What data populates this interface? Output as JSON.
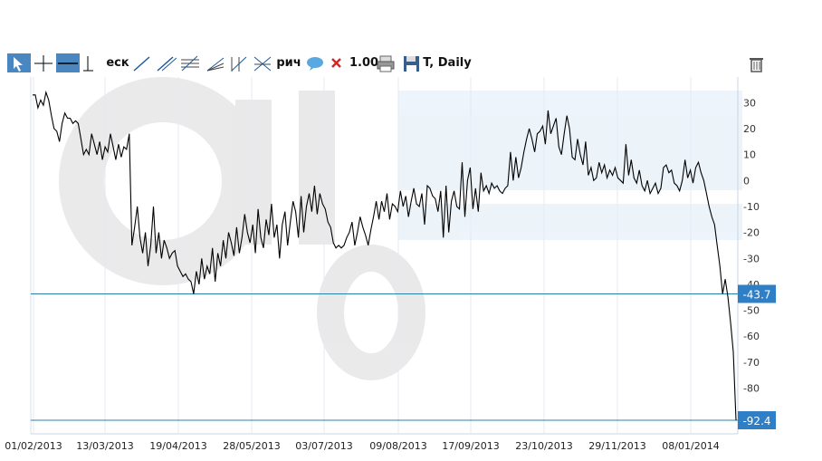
{
  "toolbar": {
    "items": [
      {
        "id": "cursor",
        "icon": "cursor-arrow-icon",
        "label": ""
      },
      {
        "id": "crosshair",
        "icon": "crosshair-icon",
        "label": ""
      },
      {
        "id": "hline",
        "icon": "horizontal-line-icon",
        "label": ""
      },
      {
        "id": "vline",
        "icon": "vertical-line-icon",
        "label": ""
      },
      {
        "id": "text1",
        "icon": "",
        "label": "еск"
      },
      {
        "id": "trend",
        "icon": "trend-line-icon",
        "label": ""
      },
      {
        "id": "ray",
        "icon": "ray-line-icon",
        "label": ""
      },
      {
        "id": "channel",
        "icon": "channel-icon",
        "label": ""
      },
      {
        "id": "fan",
        "icon": "fan-icon",
        "label": ""
      },
      {
        "id": "pitchfork",
        "icon": "pitchfork-icon",
        "label": ""
      },
      {
        "id": "gann",
        "icon": "gann-icon",
        "label": ""
      },
      {
        "id": "text2",
        "icon": "",
        "label": "рич"
      },
      {
        "id": "comment",
        "icon": "speech-bubble-icon",
        "label": ""
      },
      {
        "id": "delete",
        "icon": "x-mark-icon",
        "label": "1.00"
      },
      {
        "id": "print",
        "icon": "printer-icon",
        "label": ""
      },
      {
        "id": "save",
        "icon": "floppy-disk-icon",
        "label": "T, Daily"
      }
    ],
    "trash_icon": "trash-icon"
  },
  "chart_data": {
    "type": "line",
    "title": "",
    "xlabel": "",
    "ylabel": "",
    "ylim": [
      -92.4,
      36
    ],
    "y_ticks": [
      30,
      20,
      10,
      0,
      -10,
      -20,
      -30,
      -40,
      -50,
      -60,
      -70,
      -80
    ],
    "y_tick_labels": [
      "30",
      "20",
      "10",
      "0",
      "-10",
      "-20",
      "-30",
      "-40",
      "-50",
      "-60",
      "-70",
      "-80"
    ],
    "x_tick_labels": [
      "01/02/2013",
      "13/03/2013",
      "19/04/2013",
      "28/05/2013",
      "03/07/2013",
      "09/08/2013",
      "17/09/2013",
      "23/10/2013",
      "29/11/2013",
      "08/01/2014"
    ],
    "grid": true,
    "horizontal_lines": [
      {
        "value": -43.7,
        "label": "-43.7"
      },
      {
        "value": -92.4,
        "label": "-92.4"
      }
    ],
    "series": [
      {
        "color": "#000000",
        "values": [
          33,
          33,
          28,
          31,
          29,
          34,
          31,
          25,
          20,
          19,
          15,
          22,
          26,
          24,
          24,
          22,
          23,
          22,
          16,
          10,
          12,
          10,
          18,
          14,
          10,
          15,
          8,
          13,
          11,
          18,
          13,
          8,
          14,
          9,
          13,
          12,
          18,
          -25,
          -18,
          -10,
          -22,
          -28,
          -20,
          -33,
          -25,
          -10,
          -28,
          -20,
          -30,
          -23,
          -26,
          -30,
          -28,
          -27,
          -33,
          -35,
          -37,
          -36,
          -38,
          -39,
          -43.7,
          -35,
          -40,
          -30,
          -38,
          -33,
          -36,
          -26,
          -39,
          -28,
          -33,
          -23,
          -30,
          -20,
          -24,
          -29,
          -18,
          -28,
          -22,
          -13,
          -20,
          -24,
          -17,
          -28,
          -11,
          -22,
          -26,
          -15,
          -21,
          -9,
          -22,
          -17,
          -30,
          -17,
          -12,
          -25,
          -16,
          -8,
          -12,
          -22,
          -6,
          -20,
          -10,
          -5,
          -12,
          -2,
          -13,
          -5,
          -9,
          -11,
          -16,
          -18,
          -24,
          -26,
          -25,
          -26,
          -25,
          -22,
          -20,
          -16,
          -25,
          -20,
          -14,
          -18,
          -21,
          -25,
          -19,
          -14,
          -8,
          -15,
          -8,
          -12,
          -5,
          -15,
          -9,
          -10,
          -12,
          -4,
          -10,
          -6,
          -14,
          -8,
          -3,
          -9,
          -10,
          -5,
          -17,
          -2,
          -3,
          -6,
          -7,
          -12,
          -4,
          -22,
          -2,
          -20,
          -8,
          -4,
          -10,
          -11,
          7,
          -14,
          0,
          5,
          -11,
          -3,
          -12,
          3,
          -4,
          -2,
          -5,
          -1,
          -3,
          -2,
          -4,
          -5,
          -3,
          -2,
          11,
          0,
          9,
          1,
          5,
          11,
          16,
          20,
          16,
          11,
          18,
          19,
          21,
          14,
          27,
          18,
          21,
          24,
          13,
          10,
          18,
          25,
          20,
          9,
          8,
          16,
          10,
          6,
          15,
          2,
          5,
          0,
          1,
          7,
          3,
          6,
          1,
          4,
          2,
          5,
          1,
          0,
          -1,
          14,
          2,
          8,
          1,
          -1,
          4,
          -2,
          -4,
          0,
          -5,
          -3,
          -1,
          -5,
          -3,
          5,
          6,
          3,
          4,
          -1,
          -2,
          -4,
          0,
          8,
          1,
          4,
          -1,
          5,
          7,
          3,
          0,
          -5,
          -10,
          -14,
          -17,
          -25,
          -33,
          -43.7,
          -38,
          -45,
          -55,
          -66,
          -92.4
        ]
      }
    ]
  }
}
